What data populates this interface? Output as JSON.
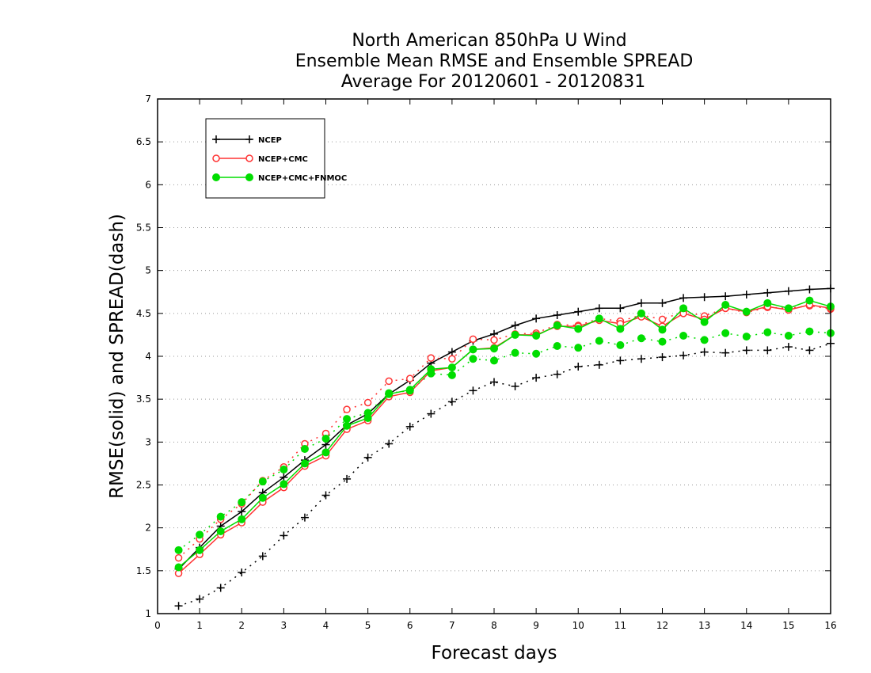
{
  "chart_data": {
    "type": "line",
    "title": [
      "North American 850hPa U Wind",
      "Ensemble Mean RMSE and Ensemble SPREAD",
      "Average For 20120601 - 20120831"
    ],
    "xlabel": "Forecast days",
    "ylabel": "RMSE(solid) and SPREAD(dash)",
    "xlim": [
      0,
      16
    ],
    "ylim": [
      1,
      7
    ],
    "x_ticks": [
      "0",
      "1",
      "2",
      "3",
      "4",
      "5",
      "6",
      "7",
      "8",
      "9",
      "10",
      "11",
      "12",
      "13",
      "14",
      "15",
      "16"
    ],
    "y_ticks": [
      "1",
      "1.5",
      "2",
      "2.5",
      "3",
      "3.5",
      "4",
      "4.5",
      "5",
      "5.5",
      "6",
      "6.5",
      "7"
    ],
    "grid": "horizontal dotted",
    "legend_position": "top-left",
    "x": [
      0.5,
      1,
      1.5,
      2,
      2.5,
      3,
      3.5,
      4,
      4.5,
      5,
      5.5,
      6,
      6.5,
      7,
      7.5,
      8,
      8.5,
      9,
      9.5,
      10,
      10.5,
      11,
      11.5,
      12,
      12.5,
      13,
      13.5,
      14,
      14.5,
      15,
      15.5,
      16
    ],
    "series": [
      {
        "name": "NCEP",
        "color": "#000000",
        "marker": "plus",
        "rmse": [
          1.52,
          1.77,
          2.02,
          2.19,
          2.41,
          2.59,
          2.79,
          2.97,
          3.2,
          3.33,
          3.56,
          3.72,
          3.92,
          4.05,
          4.18,
          4.26,
          4.36,
          4.44,
          4.48,
          4.52,
          4.56,
          4.56,
          4.62,
          4.62,
          4.68,
          4.69,
          4.7,
          4.72,
          4.74,
          4.76,
          4.78,
          4.79
        ],
        "spread": [
          1.09,
          1.17,
          1.3,
          1.48,
          1.67,
          1.91,
          2.12,
          2.38,
          2.57,
          2.82,
          2.98,
          3.18,
          3.33,
          3.47,
          3.6,
          3.7,
          3.65,
          3.75,
          3.79,
          3.88,
          3.9,
          3.95,
          3.97,
          3.99,
          4.01,
          4.05,
          4.04,
          4.07,
          4.07,
          4.11,
          4.07,
          4.15
        ]
      },
      {
        "name": "NCEP+CMC",
        "color": "#ff3333",
        "marker": "circle",
        "rmse": [
          1.47,
          1.69,
          1.92,
          2.06,
          2.3,
          2.47,
          2.72,
          2.84,
          3.15,
          3.25,
          3.53,
          3.58,
          3.83,
          3.87,
          4.08,
          4.1,
          4.25,
          4.25,
          4.35,
          4.35,
          4.42,
          4.38,
          4.46,
          4.35,
          4.5,
          4.43,
          4.56,
          4.52,
          4.58,
          4.54,
          4.6,
          4.56
        ],
        "spread": [
          1.65,
          1.87,
          2.1,
          2.28,
          2.55,
          2.71,
          2.98,
          3.1,
          3.38,
          3.46,
          3.71,
          3.74,
          3.98,
          3.97,
          4.2,
          4.19,
          4.26,
          4.27,
          4.37,
          4.36,
          4.44,
          4.41,
          4.48,
          4.43,
          4.52,
          4.47,
          4.56,
          4.51,
          4.57,
          4.56,
          4.59,
          4.55
        ]
      },
      {
        "name": "NCEP+CMC+FNMOC",
        "color": "#00dd00",
        "marker": "dot",
        "rmse": [
          1.54,
          1.74,
          1.96,
          2.1,
          2.35,
          2.51,
          2.75,
          2.88,
          3.19,
          3.28,
          3.56,
          3.61,
          3.85,
          3.87,
          4.08,
          4.09,
          4.25,
          4.24,
          4.36,
          4.32,
          4.44,
          4.32,
          4.5,
          4.31,
          4.56,
          4.4,
          4.6,
          4.52,
          4.62,
          4.56,
          4.65,
          4.58
        ],
        "spread": [
          1.74,
          1.92,
          2.13,
          2.3,
          2.54,
          2.68,
          2.92,
          3.04,
          3.27,
          3.34,
          3.57,
          3.6,
          3.8,
          3.78,
          3.97,
          3.95,
          4.04,
          4.03,
          4.12,
          4.1,
          4.18,
          4.13,
          4.21,
          4.17,
          4.24,
          4.19,
          4.27,
          4.23,
          4.28,
          4.24,
          4.29,
          4.27
        ]
      }
    ]
  }
}
